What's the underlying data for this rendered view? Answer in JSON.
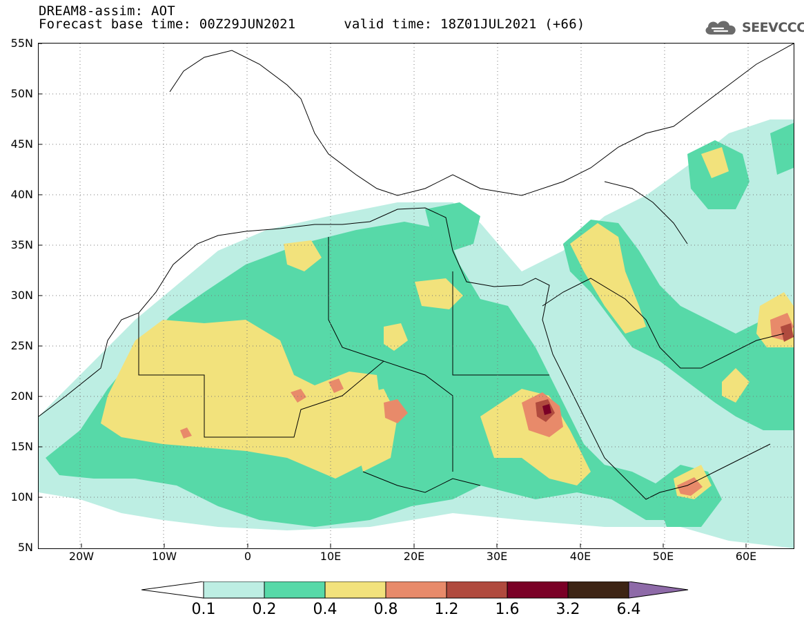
{
  "header": {
    "title": "DREAM8-assim: AOT",
    "base_time": "Forecast base time: 00Z29JUN2021",
    "valid_time": "valid time: 18Z01JUL2021 (+66)"
  },
  "logo": {
    "text": "SEEVCCC",
    "icon": "cloud-icon"
  },
  "map": {
    "lat_ticks": [
      "55N",
      "50N",
      "45N",
      "40N",
      "35N",
      "30N",
      "25N",
      "20N",
      "15N",
      "10N",
      "5N"
    ],
    "lon_ticks": [
      "20W",
      "10W",
      "0",
      "10E",
      "20E",
      "30E",
      "40E",
      "50E",
      "60E"
    ],
    "lon_range": [
      -25,
      65
    ],
    "lat_range": [
      5,
      55
    ],
    "gridlines": "dotted"
  },
  "legend": {
    "labels": [
      "0.1",
      "0.2",
      "0.4",
      "0.8",
      "1.2",
      "1.6",
      "3.2",
      "6.4"
    ],
    "colors": [
      "#ffffff",
      "#bdeee3",
      "#57d9a8",
      "#f2e27c",
      "#e88a6a",
      "#b04a3e",
      "#7a0026",
      "#3d2414",
      "#8e6aa8"
    ]
  }
}
